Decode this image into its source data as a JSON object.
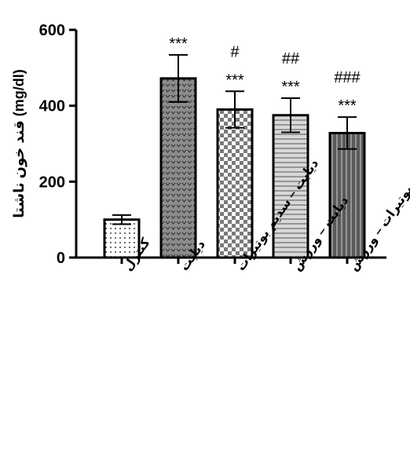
{
  "chart_data": {
    "type": "bar",
    "ylabel": "قند خون ناشتا (mg/dl)",
    "xlabel": "",
    "ylim": [
      0,
      600
    ],
    "yticks": [
      0,
      200,
      400,
      600
    ],
    "grid": false,
    "categories": [
      "کنترل",
      "دیابت",
      "دیابت – سدیم بوتیرات",
      "دیابت – ورزش",
      "دیابت – سدیم بوتیرات – ورزش"
    ],
    "values": [
      100,
      472,
      390,
      375,
      328
    ],
    "errors": [
      12,
      62,
      48,
      45,
      42
    ],
    "significance_top": [
      "",
      "***",
      "#",
      "##",
      "###"
    ],
    "significance_bottom": [
      "",
      "",
      "***",
      "***",
      "***"
    ],
    "bar_styles": [
      "dots",
      "chevron",
      "checker",
      "hlines",
      "vlines"
    ],
    "colors": {
      "stroke": "#000000",
      "bar_dark_fill": "#5a5a5a",
      "bar_light_fill": "#d8d8d8"
    }
  }
}
